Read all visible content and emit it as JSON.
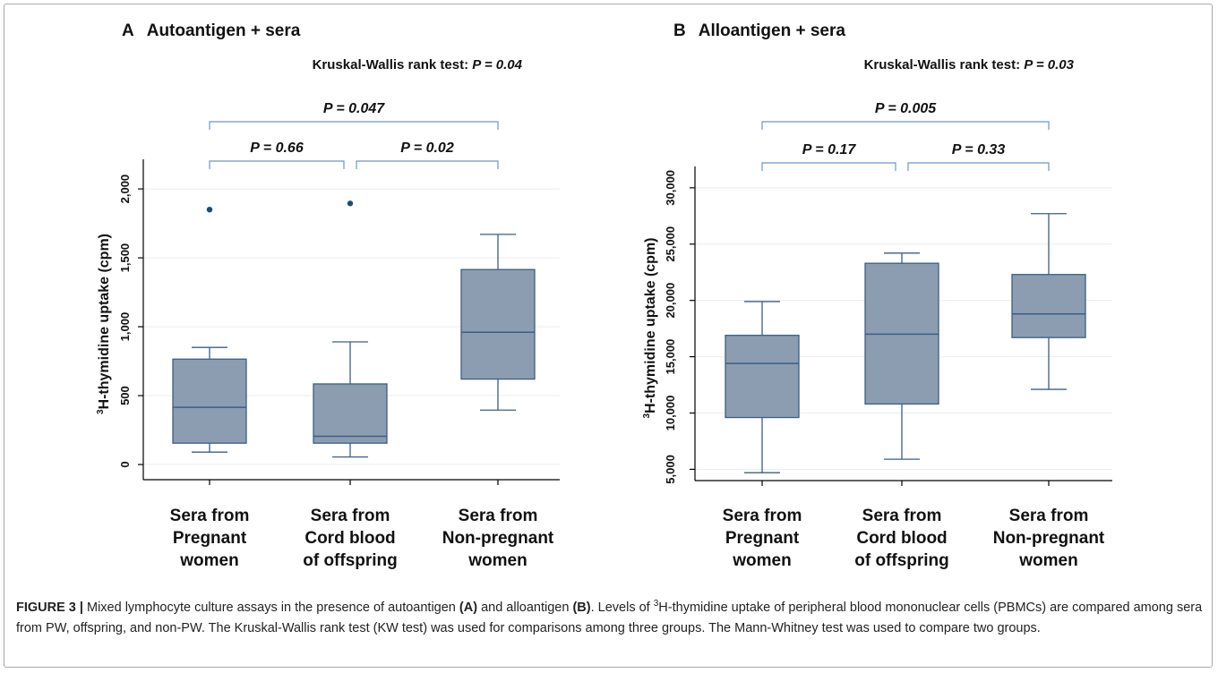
{
  "chart_data": [
    {
      "type": "box",
      "panel_letter": "A",
      "title": "Autoantigen + sera",
      "test_label": "Kruskal-Wallis rank test: ",
      "test_p": "P = 0.04",
      "ylabel_sup": "3",
      "ylabel": "H-thymidine uptake (cpm)",
      "ylim": [
        -110,
        2150
      ],
      "yticks": [
        0,
        500,
        1000,
        1500,
        2000
      ],
      "ytick_labels": [
        "0",
        "500",
        "1,000",
        "1,500",
        "2,000"
      ],
      "categories": [
        [
          "Sera from",
          "Pregnant",
          "women"
        ],
        [
          "Sera from",
          "Cord blood",
          "of offspring"
        ],
        [
          "Sera from",
          "Non-pregnant",
          "women"
        ]
      ],
      "boxes": [
        {
          "whisker_low": 90,
          "q1": 155,
          "median": 415,
          "q3": 765,
          "whisker_high": 850,
          "outliers": [
            1850
          ]
        },
        {
          "whisker_low": 55,
          "q1": 155,
          "median": 205,
          "q3": 585,
          "whisker_high": 890,
          "outliers": [
            1895
          ]
        },
        {
          "whisker_low": 395,
          "q1": 620,
          "median": 960,
          "q3": 1415,
          "whisker_high": 1670,
          "outliers": []
        }
      ],
      "comparisons": [
        {
          "from": 0,
          "to": 1,
          "label": "P = 0.66"
        },
        {
          "from": 1,
          "to": 2,
          "label": "P = 0.02"
        },
        {
          "from": 0,
          "to": 2,
          "label": "P = 0.047"
        }
      ]
    },
    {
      "type": "box",
      "panel_letter": "B",
      "title": "Alloantigen + sera",
      "test_label": "Kruskal-Wallis rank test: ",
      "test_p": "P = 0.03",
      "ylabel_sup": "3",
      "ylabel": "H-thymidine uptake (cpm)",
      "ylim": [
        4000,
        31100
      ],
      "yticks": [
        5000,
        10000,
        15000,
        20000,
        25000,
        30000
      ],
      "ytick_labels": [
        "5,000",
        "10,000",
        "15,000",
        "20,000",
        "25,000",
        "30,000"
      ],
      "categories": [
        [
          "Sera from",
          "Pregnant",
          "women"
        ],
        [
          "Sera from",
          "Cord blood",
          "of offspring"
        ],
        [
          "Sera from",
          "Non-pregnant",
          "women"
        ]
      ],
      "boxes": [
        {
          "whisker_low": 4700,
          "q1": 9600,
          "median": 14400,
          "q3": 16900,
          "whisker_high": 19900,
          "outliers": []
        },
        {
          "whisker_low": 5900,
          "q1": 10800,
          "median": 17000,
          "q3": 23300,
          "whisker_high": 24200,
          "outliers": []
        },
        {
          "whisker_low": 12100,
          "q1": 16700,
          "median": 18800,
          "q3": 22300,
          "whisker_high": 27700,
          "outliers": []
        }
      ],
      "comparisons": [
        {
          "from": 0,
          "to": 1,
          "label": "P = 0.17"
        },
        {
          "from": 1,
          "to": 2,
          "label": "P = 0.33"
        },
        {
          "from": 0,
          "to": 2,
          "label": "P = 0.005"
        }
      ]
    }
  ],
  "colors": {
    "box_fill": "#8c9db1",
    "box_stroke": "#3a5f85",
    "bracket": "#6d95c8",
    "outlier": "#1e4a7a",
    "axis": "#000000",
    "grid": "#e6edf2"
  },
  "caption": {
    "figure_label": "FIGURE 3 |",
    "t1": " Mixed lymphocyte culture assays in the presence of autoantigen ",
    "ref_a": "(A)",
    "t2": " and alloantigen ",
    "ref_b": "(B)",
    "t3": ". Levels of ",
    "sup": "3",
    "t4": "H-thymidine uptake of peripheral blood mononuclear cells (PBMCs) are compared among sera from PW, offspring, and non-PW. The Kruskal-Wallis rank test (KW test) was used for comparisons among three groups. The Mann-Whitney test was used to compare two groups."
  }
}
